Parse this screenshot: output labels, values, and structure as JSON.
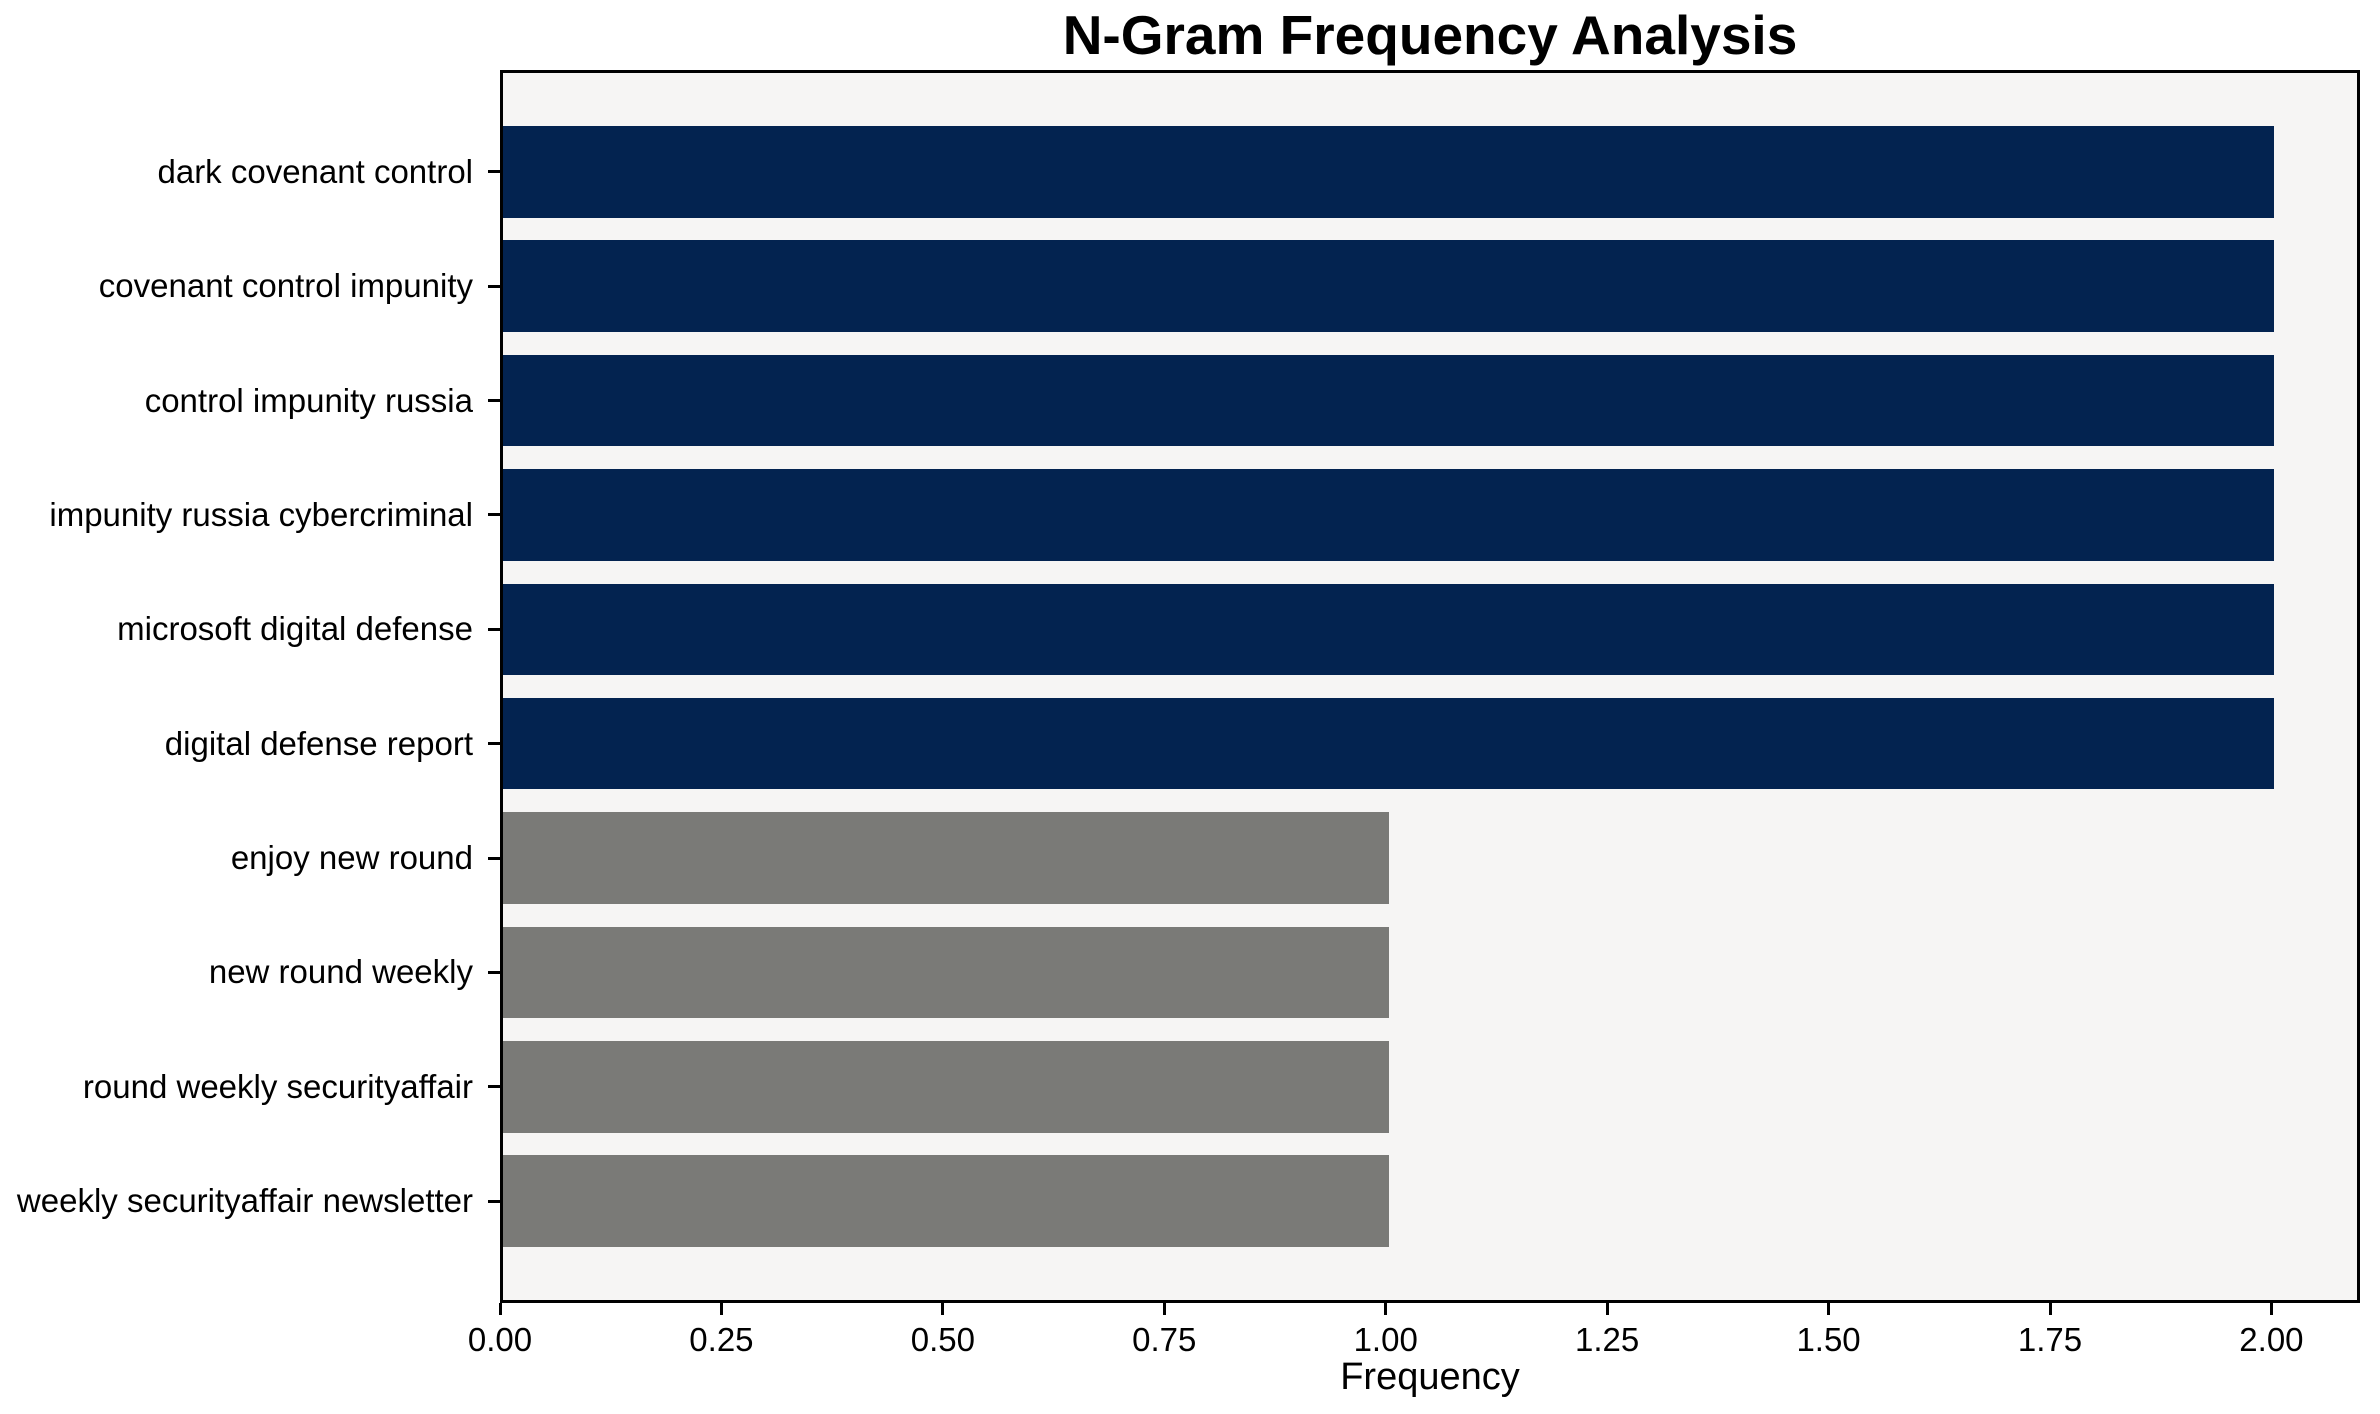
{
  "chart_data": {
    "type": "bar",
    "orientation": "horizontal",
    "title": "N-Gram Frequency Analysis",
    "xlabel": "Frequency",
    "ylabel": "",
    "categories": [
      "dark covenant control",
      "covenant control impunity",
      "control impunity russia",
      "impunity russia cybercriminal",
      "microsoft digital defense",
      "digital defense report",
      "enjoy new round",
      "new round weekly",
      "round weekly securityaffair",
      "weekly securityaffair newsletter"
    ],
    "values": [
      2,
      2,
      2,
      2,
      2,
      2,
      1,
      1,
      1,
      1
    ],
    "bar_colors": [
      "#032350",
      "#032350",
      "#032350",
      "#032350",
      "#032350",
      "#032350",
      "#7a7a77",
      "#7a7a77",
      "#7a7a77",
      "#7a7a77"
    ],
    "xlim": [
      0,
      2.1
    ],
    "xticks": {
      "values": [
        0,
        0.25,
        0.5,
        0.75,
        1.0,
        1.25,
        1.5,
        1.75,
        2.0
      ],
      "labels": [
        "0.00",
        "0.25",
        "0.50",
        "0.75",
        "1.00",
        "1.25",
        "1.50",
        "1.75",
        "2.00"
      ]
    },
    "grid": false,
    "legend": "none",
    "plot_background": "#f6f5f4",
    "figure_background": "#ffffff",
    "spine_color": "#000000",
    "text_color": "#000000"
  }
}
